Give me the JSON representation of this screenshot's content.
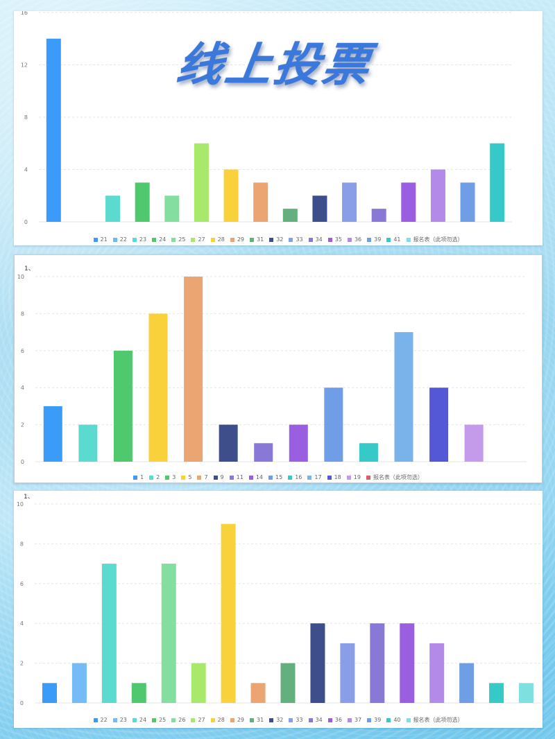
{
  "title": "线上投票",
  "chart_data": [
    {
      "type": "bar",
      "prefix": "",
      "categories": [
        "21",
        "22",
        "23",
        "24",
        "25",
        "27",
        "28",
        "29",
        "31",
        "32",
        "33",
        "34",
        "35",
        "36",
        "39",
        "41",
        "报名表（此项勿选）"
      ],
      "values": [
        14,
        0,
        2,
        3,
        2,
        6,
        4,
        3,
        1,
        2,
        3,
        1,
        3,
        4,
        3,
        6,
        0
      ],
      "colors": [
        "#3a9bf8",
        "#6cb8f8",
        "#5bdbd0",
        "#4fc86e",
        "#84dea0",
        "#a8e86a",
        "#f9d13a",
        "#eba573",
        "#63b07e",
        "#3d4e8a",
        "#8a9ee8",
        "#8a78d6",
        "#9a5ee0",
        "#b38ae8",
        "#6f9de6",
        "#37c8c8",
        "#7fe0e0"
      ],
      "ylim": [
        0,
        16
      ],
      "yticks": [
        "0",
        "4",
        "8",
        "12",
        "16"
      ],
      "grid": true,
      "legend": "bottom"
    },
    {
      "type": "bar",
      "prefix": "1、",
      "categories": [
        "1",
        "2",
        "3",
        "5",
        "7",
        "9",
        "11",
        "14",
        "15",
        "16",
        "17",
        "18",
        "19",
        "报名表（此项勿选）"
      ],
      "values": [
        3,
        2,
        6,
        8,
        10,
        2,
        1,
        2,
        4,
        1,
        7,
        4,
        2,
        0
      ],
      "colors": [
        "#3a9bf8",
        "#5bdbd0",
        "#4fc86e",
        "#f9d13a",
        "#eba573",
        "#3d4e8a",
        "#8a78d6",
        "#9a5ee0",
        "#6f9de6",
        "#37c8c8",
        "#79b3ea",
        "#5558d6",
        "#c49aea",
        "#e05a6e"
      ],
      "ylim": [
        0,
        10
      ],
      "yticks": [
        "0",
        "2",
        "4",
        "6",
        "8",
        "10"
      ],
      "grid": true,
      "legend": "bottom"
    },
    {
      "type": "bar",
      "prefix": "1、",
      "categories": [
        "22",
        "23",
        "24",
        "25",
        "26",
        "27",
        "28",
        "29",
        "31",
        "32",
        "33",
        "34",
        "36",
        "37",
        "39",
        "40",
        "报名表（此项勿选）"
      ],
      "values": [
        1,
        2,
        7,
        1,
        7,
        2,
        9,
        1,
        2,
        4,
        3,
        4,
        4,
        3,
        2,
        1,
        1
      ],
      "colors": [
        "#3a9bf8",
        "#74bbf8",
        "#5bdbd0",
        "#4fc86e",
        "#84dea0",
        "#a8e86a",
        "#f9d13a",
        "#eba573",
        "#63b07e",
        "#3d4e8a",
        "#8a9ee8",
        "#8a78d6",
        "#9a5ee0",
        "#b38ae8",
        "#6f9de6",
        "#37c8c8",
        "#7fe0e0"
      ],
      "ylim": [
        0,
        10
      ],
      "yticks": [
        "0",
        "2",
        "4",
        "6",
        "8",
        "10"
      ],
      "grid": true,
      "legend": "bottom"
    }
  ]
}
